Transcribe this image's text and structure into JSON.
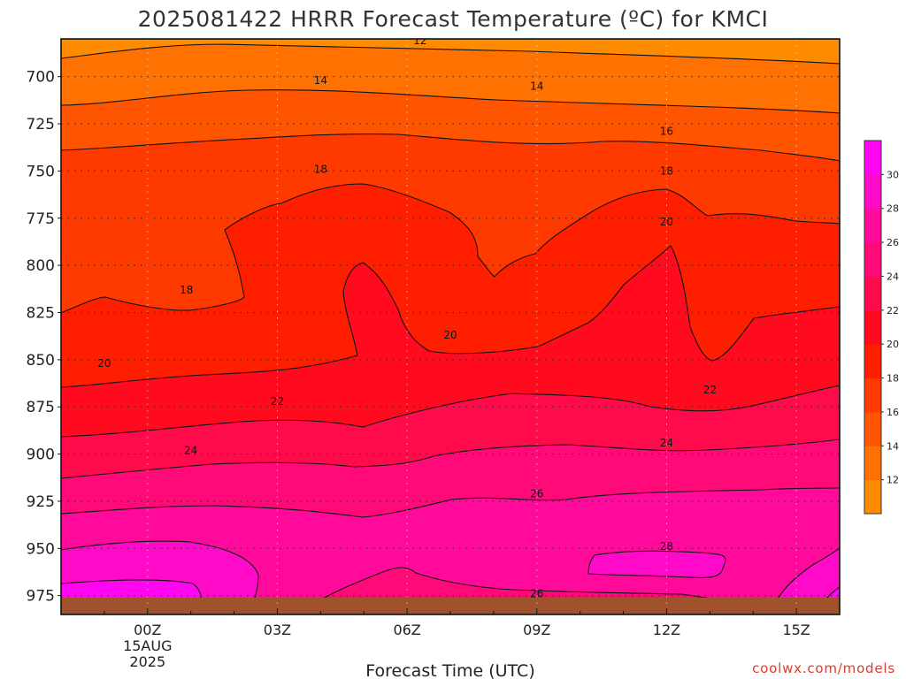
{
  "chart_data": {
    "type": "contour",
    "title": "2025081422 HRRR Forecast Temperature (ºC) for KMCI",
    "xlabel": "Forecast Time (UTC)",
    "ylabel": "",
    "y_ticks": [
      "700",
      "725",
      "750",
      "775",
      "800",
      "825",
      "850",
      "875",
      "900",
      "925",
      "950",
      "975"
    ],
    "y_values": [
      700,
      725,
      750,
      775,
      800,
      825,
      850,
      875,
      900,
      925,
      950,
      975
    ],
    "ylim": [
      680,
      985
    ],
    "x_hours": [
      -2,
      -1,
      0,
      1,
      2,
      3,
      4,
      5,
      6,
      7,
      8,
      9,
      10,
      11,
      12,
      13,
      14,
      15,
      16
    ],
    "xlim": [
      -2,
      16
    ],
    "x_ticks": [
      {
        "hour": 0,
        "label": "00Z",
        "date_line1": "15AUG",
        "date_line2": "2025"
      },
      {
        "hour": 3,
        "label": "03Z"
      },
      {
        "hour": 6,
        "label": "06Z"
      },
      {
        "hour": 9,
        "label": "09Z"
      },
      {
        "hour": 12,
        "label": "12Z"
      },
      {
        "hour": 15,
        "label": "15Z"
      }
    ],
    "colorbar": {
      "levels": [
        10,
        12,
        14,
        16,
        18,
        20,
        22,
        24,
        26,
        28,
        30,
        32
      ],
      "tick_labels": [
        "12",
        "14",
        "16",
        "18",
        "20",
        "22",
        "24",
        "26",
        "28",
        "30"
      ],
      "colors": [
        "#ff8c00",
        "#ff7100",
        "#ff5500",
        "#ff3a00",
        "#ff1e00",
        "#ff0a1e",
        "#ff0a4b",
        "#ff0a78",
        "#ff0a9b",
        "#ff0ac8",
        "#ff05f0"
      ]
    },
    "ground_color": "#a0522d",
    "contours": [
      {
        "level": 12,
        "pressure": [
          687,
          685,
          683,
          680,
          681,
          682,
          683,
          684,
          685,
          685,
          686,
          686,
          687,
          688,
          689,
          689,
          690,
          690,
          691
        ]
      },
      {
        "level": 14,
        "pressure": [
          707,
          706,
          704,
          702,
          701,
          701,
          702,
          703,
          704,
          705,
          706,
          707,
          708,
          709,
          709,
          710,
          711,
          712,
          714
        ]
      },
      {
        "level": 16,
        "pressure": [
          733,
          731,
          731,
          730,
          729,
          729,
          728,
          728,
          729,
          730,
          731,
          731,
          730,
          729,
          729,
          730,
          731,
          732,
          733
        ]
      }
    ],
    "contour_labels": [
      {
        "text": "12",
        "hour": 6.3,
        "pressure": 681
      },
      {
        "text": "14",
        "hour": 4.0,
        "pressure": 702
      },
      {
        "text": "14",
        "hour": 9.0,
        "pressure": 705
      },
      {
        "text": "16",
        "hour": 12.0,
        "pressure": 729
      },
      {
        "text": "18",
        "hour": 4.0,
        "pressure": 749
      },
      {
        "text": "18",
        "hour": 12.0,
        "pressure": 750
      },
      {
        "text": "18",
        "hour": 0.9,
        "pressure": 813
      },
      {
        "text": "20",
        "hour": 12.0,
        "pressure": 777
      },
      {
        "text": "20",
        "hour": 7.0,
        "pressure": 837
      },
      {
        "text": "20",
        "hour": -1.0,
        "pressure": 852
      },
      {
        "text": "22",
        "hour": 3.0,
        "pressure": 872
      },
      {
        "text": "22",
        "hour": 13.0,
        "pressure": 866
      },
      {
        "text": "24",
        "hour": 1.0,
        "pressure": 898
      },
      {
        "text": "24",
        "hour": 12.0,
        "pressure": 894
      },
      {
        "text": "26",
        "hour": 9.0,
        "pressure": 921
      },
      {
        "text": "26",
        "hour": 9.0,
        "pressure": 974
      },
      {
        "text": "28",
        "hour": 12.0,
        "pressure": 949
      }
    ]
  },
  "credit": "coolwx.com/models"
}
